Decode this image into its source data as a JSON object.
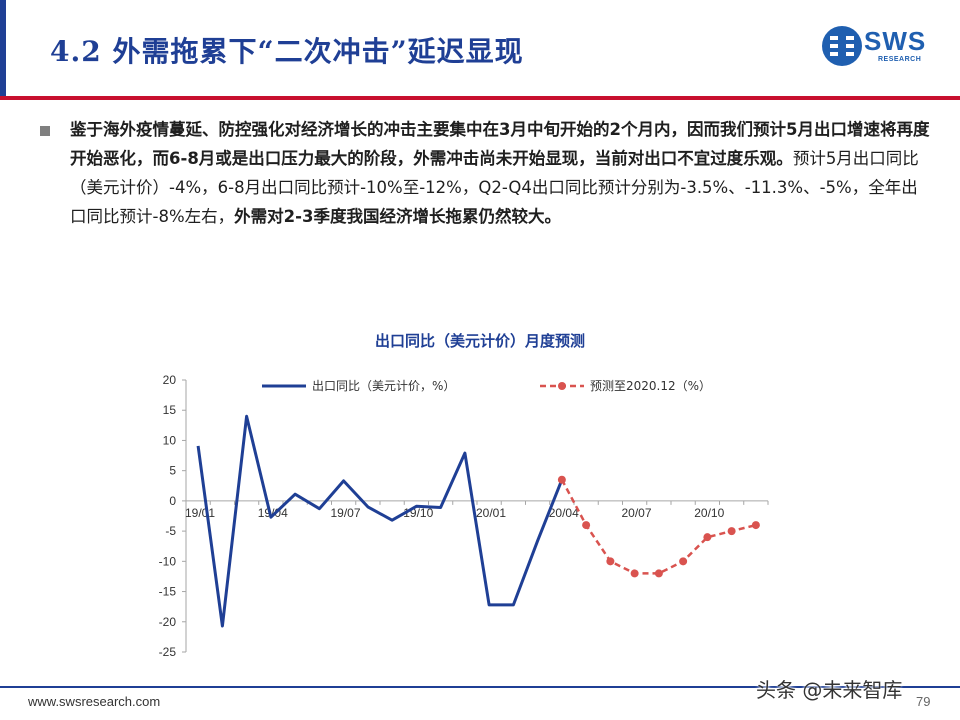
{
  "header": {
    "title": "4.2 外需拖累下“二次冲击”延迟显现",
    "logo_text": "SWS",
    "logo_sub": "RESEARCH"
  },
  "body": {
    "bold_part": "鉴于海外疫情蔓延、防控强化对经济增长的冲击主要集中在3月中旬开始的2个月内，因而我们预计5月出口增速将再度开始恶化，而6-8月或是出口压力最大的阶段，外需冲击尚未开始显现，当前对出口不宜过度乐观。",
    "normal_part": "预计5月出口同比（美元计价）-4%，6-8月出口同比预计-10%至-12%，Q2-Q4出口同比预计分别为-3.5%、-11.3%、-5%，全年出口同比预计-8%左右，",
    "bold_tail": "外需对2-3季度我国经济增长拖累仍然较大。"
  },
  "chart_data": {
    "type": "line",
    "title": "出口同比（美元计价）月度预测",
    "x": [
      "19/01",
      "19/02",
      "19/03",
      "19/04",
      "19/05",
      "19/06",
      "19/07",
      "19/08",
      "19/09",
      "19/10",
      "19/11",
      "19/12",
      "20/01",
      "20/02",
      "20/03",
      "20/04",
      "20/05",
      "20/06",
      "20/07",
      "20/08",
      "20/09",
      "20/10",
      "20/11",
      "20/12"
    ],
    "x_tick_labels": [
      "19/01",
      "19/04",
      "19/07",
      "19/10",
      "20/01",
      "20/04",
      "20/07",
      "20/10"
    ],
    "y_ticks": [
      "20",
      "15",
      "10",
      "5",
      "0",
      "-5",
      "-10",
      "-15",
      "-20",
      "-25"
    ],
    "ylim": [
      -25,
      20
    ],
    "grid": false,
    "legend_placement": "top",
    "series": [
      {
        "name": "出口同比（美元计价，%）",
        "color": "#1f3f95",
        "style": "solid",
        "values": [
          9.1,
          -20.7,
          14.0,
          -2.7,
          1.1,
          -1.3,
          3.3,
          -1.0,
          -3.2,
          -0.9,
          -1.1,
          7.9,
          -17.2,
          -17.2,
          -6.6,
          3.5,
          null,
          null,
          null,
          null,
          null,
          null,
          null,
          null
        ]
      },
      {
        "name": "预测至2020.12（%）",
        "color": "#d9534f",
        "style": "dashed-markers",
        "values": [
          null,
          null,
          null,
          null,
          null,
          null,
          null,
          null,
          null,
          null,
          null,
          null,
          null,
          null,
          null,
          3.5,
          -4,
          -10,
          -12,
          -12,
          -10,
          -6,
          -5,
          -4
        ]
      }
    ]
  },
  "footer": {
    "url": "www.swsresearch.com",
    "page": "79",
    "watermark": "头条 @未来智库"
  }
}
